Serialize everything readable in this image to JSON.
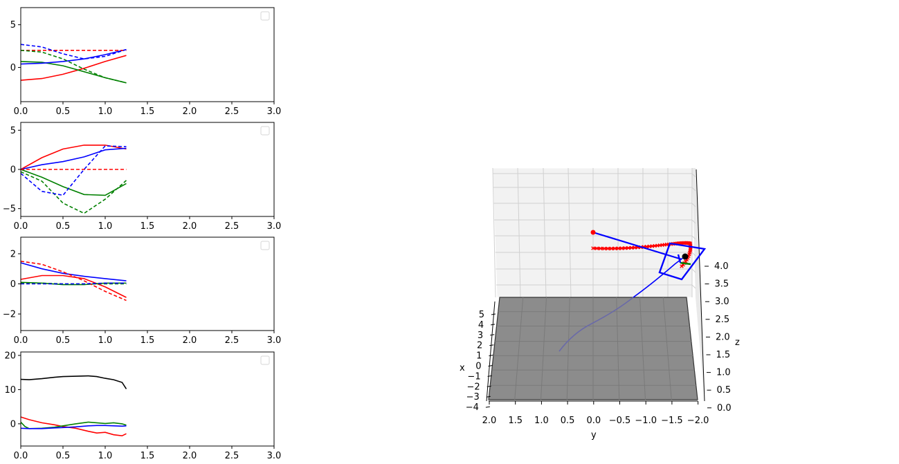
{
  "chart_data": [
    {
      "type": "line",
      "panel": "1",
      "xlim": [
        0,
        3.0
      ],
      "ylim": [
        -4,
        7
      ],
      "x_ticks": [
        "0.0",
        "0.5",
        "1.0",
        "1.5",
        "2.0",
        "2.5",
        "3.0"
      ],
      "y_ticks": [
        "5",
        "0"
      ],
      "y_tick_values": [
        5,
        0
      ],
      "legend": "top-right (empty)",
      "series": [
        {
          "color": "#ff0000",
          "style": "solid",
          "x": [
            0,
            0.25,
            0.5,
            0.75,
            1.0,
            1.25
          ],
          "y": [
            -1.5,
            -1.3,
            -0.8,
            -0.1,
            0.7,
            1.4
          ]
        },
        {
          "color": "#008000",
          "style": "solid",
          "x": [
            0,
            0.25,
            0.5,
            0.75,
            1.0,
            1.25
          ],
          "y": [
            0.7,
            0.6,
            0.2,
            -0.5,
            -1.2,
            -1.8
          ]
        },
        {
          "color": "#0000ff",
          "style": "solid",
          "x": [
            0,
            0.25,
            0.5,
            0.75,
            1.0,
            1.25
          ],
          "y": [
            0.4,
            0.5,
            0.7,
            1.0,
            1.5,
            2.1
          ]
        },
        {
          "color": "#ff0000",
          "style": "dashed",
          "x": [
            0,
            0.25,
            0.5,
            0.75,
            1.0,
            1.25
          ],
          "y": [
            2.0,
            2.0,
            2.0,
            2.0,
            2.0,
            2.0
          ]
        },
        {
          "color": "#008000",
          "style": "dashed",
          "x": [
            0,
            0.25,
            0.5,
            0.75,
            1.0,
            1.25
          ],
          "y": [
            2.0,
            1.8,
            1.0,
            -0.2,
            -1.2,
            -1.8
          ]
        },
        {
          "color": "#0000ff",
          "style": "dashed",
          "x": [
            0,
            0.25,
            0.5,
            0.75,
            1.0,
            1.25
          ],
          "y": [
            2.7,
            2.4,
            1.6,
            1.0,
            1.3,
            2.1
          ]
        }
      ]
    },
    {
      "type": "line",
      "panel": "2",
      "xlim": [
        0,
        3.0
      ],
      "ylim": [
        -6,
        6
      ],
      "x_ticks": [
        "0.0",
        "0.5",
        "1.0",
        "1.5",
        "2.0",
        "2.5",
        "3.0"
      ],
      "y_ticks": [
        "5",
        "0",
        "−5"
      ],
      "y_tick_values": [
        5,
        0,
        -5
      ],
      "legend": "top-right (empty)",
      "series": [
        {
          "color": "#ff0000",
          "style": "solid",
          "x": [
            0,
            0.25,
            0.5,
            0.75,
            1.0,
            1.25
          ],
          "y": [
            0.0,
            1.5,
            2.6,
            3.1,
            3.1,
            2.6
          ]
        },
        {
          "color": "#008000",
          "style": "solid",
          "x": [
            0,
            0.25,
            0.5,
            0.75,
            1.0,
            1.25
          ],
          "y": [
            0.0,
            -1.0,
            -2.2,
            -3.2,
            -3.3,
            -1.8
          ]
        },
        {
          "color": "#0000ff",
          "style": "solid",
          "x": [
            0,
            0.25,
            0.5,
            0.75,
            1.0,
            1.25
          ],
          "y": [
            0.0,
            0.6,
            1.0,
            1.6,
            2.5,
            2.7
          ]
        },
        {
          "color": "#ff0000",
          "style": "dashed",
          "x": [
            0,
            0.25,
            0.5,
            0.75,
            1.0,
            1.25
          ],
          "y": [
            0.0,
            0.0,
            0.0,
            0.0,
            0.0,
            0.0
          ]
        },
        {
          "color": "#008000",
          "style": "dashed",
          "x": [
            0,
            0.25,
            0.5,
            0.75,
            1.0,
            1.25
          ],
          "y": [
            -0.3,
            -1.5,
            -4.3,
            -5.6,
            -3.8,
            -1.4
          ]
        },
        {
          "color": "#0000ff",
          "style": "dashed",
          "x": [
            0,
            0.25,
            0.5,
            0.75,
            1.0,
            1.25
          ],
          "y": [
            -0.5,
            -2.8,
            -3.3,
            0.0,
            3.0,
            2.9
          ]
        }
      ]
    },
    {
      "type": "line",
      "panel": "3",
      "xlim": [
        0,
        3.0
      ],
      "ylim": [
        -3.1,
        3.1
      ],
      "x_ticks": [
        "0.0",
        "0.5",
        "1.0",
        "1.5",
        "2.0",
        "2.5",
        "3.0"
      ],
      "y_ticks": [
        "2",
        "0",
        "−2"
      ],
      "y_tick_values": [
        2,
        0,
        -2
      ],
      "legend": "top-right (empty)",
      "series": [
        {
          "color": "#ff0000",
          "style": "solid",
          "x": [
            0,
            0.25,
            0.5,
            0.75,
            1.0,
            1.25
          ],
          "y": [
            0.3,
            0.55,
            0.55,
            0.35,
            -0.2,
            -0.9
          ]
        },
        {
          "color": "#008000",
          "style": "solid",
          "x": [
            0,
            0.25,
            0.5,
            0.75,
            1.0,
            1.25
          ],
          "y": [
            0.1,
            0.05,
            -0.05,
            -0.05,
            0.05,
            0.05
          ]
        },
        {
          "color": "#0000ff",
          "style": "solid",
          "x": [
            0,
            0.25,
            0.5,
            0.75,
            1.0,
            1.25
          ],
          "y": [
            1.4,
            1.0,
            0.7,
            0.5,
            0.35,
            0.2
          ]
        },
        {
          "color": "#ff0000",
          "style": "dashed",
          "x": [
            0,
            0.25,
            0.5,
            0.75,
            1.0,
            1.25
          ],
          "y": [
            1.5,
            1.3,
            0.8,
            0.2,
            -0.5,
            -1.1
          ]
        },
        {
          "color": "#008000",
          "style": "dashed",
          "x": [
            0,
            0.25,
            0.5,
            0.75,
            1.0,
            1.25
          ],
          "y": [
            0.05,
            0.05,
            0.0,
            0.0,
            0.0,
            0.0
          ]
        },
        {
          "color": "#0000ff",
          "style": "dashed",
          "x": [
            0,
            0.25,
            0.5,
            0.75,
            1.0,
            1.25
          ],
          "y": [
            0.0,
            0.0,
            0.0,
            0.0,
            0.05,
            0.05
          ]
        }
      ]
    },
    {
      "type": "line",
      "panel": "4",
      "xlim": [
        0,
        3.0
      ],
      "ylim": [
        -6.5,
        21
      ],
      "x_ticks": [
        "0.0",
        "0.5",
        "1.0",
        "1.5",
        "2.0",
        "2.5",
        "3.0"
      ],
      "y_ticks": [
        "20",
        "10",
        "0"
      ],
      "y_tick_values": [
        20,
        10,
        0
      ],
      "legend": "top-right (empty)",
      "series": [
        {
          "color": "#000000",
          "style": "solid",
          "x": [
            0,
            0.1,
            0.25,
            0.4,
            0.5,
            0.65,
            0.8,
            0.9,
            1.0,
            1.1,
            1.2,
            1.25
          ],
          "y": [
            13.0,
            12.9,
            13.2,
            13.6,
            13.8,
            13.9,
            14.0,
            13.8,
            13.3,
            12.9,
            12.1,
            10.2
          ]
        },
        {
          "color": "#ff0000",
          "style": "solid",
          "x": [
            0,
            0.1,
            0.25,
            0.4,
            0.5,
            0.65,
            0.8,
            0.9,
            1.0,
            1.1,
            1.2,
            1.25
          ],
          "y": [
            2.0,
            1.2,
            0.3,
            -0.3,
            -0.8,
            -1.3,
            -2.2,
            -2.7,
            -2.5,
            -3.2,
            -3.5,
            -2.9
          ]
        },
        {
          "color": "#008000",
          "style": "solid",
          "x": [
            0,
            0.05,
            0.1,
            0.25,
            0.4,
            0.5,
            0.65,
            0.8,
            0.9,
            1.0,
            1.1,
            1.2,
            1.25
          ],
          "y": [
            0.5,
            -0.8,
            -1.4,
            -1.3,
            -1.0,
            -0.6,
            0.0,
            0.5,
            0.3,
            0.1,
            0.3,
            0.0,
            -0.4
          ]
        },
        {
          "color": "#0000ff",
          "style": "solid",
          "x": [
            0,
            0.1,
            0.25,
            0.4,
            0.5,
            0.65,
            0.8,
            0.9,
            1.0,
            1.1,
            1.2,
            1.25
          ],
          "y": [
            -1.3,
            -1.4,
            -1.4,
            -1.2,
            -1.1,
            -0.9,
            -0.6,
            -0.5,
            -0.5,
            -0.6,
            -0.7,
            -0.6
          ]
        }
      ]
    }
  ],
  "plot3d": {
    "x_label": "x",
    "y_label": "y",
    "z_label": "z",
    "x_ticks": [
      "5",
      "4",
      "3",
      "2",
      "1",
      "0",
      "−1",
      "−2",
      "−3",
      "−4"
    ],
    "y_ticks": [
      "2.0",
      "1.5",
      "1.0",
      "0.5",
      "0.0",
      "−0.5",
      "−1.0",
      "−1.5",
      "−2.0"
    ],
    "z_ticks": [
      "4.0",
      "3.5",
      "3.0",
      "2.5",
      "2.0",
      "1.5",
      "1.0",
      "0.5",
      "0.0"
    ],
    "colors": {
      "trajectory": "#0000ff",
      "markers": "#ff0000",
      "floor": "#8c8c8c",
      "pane": "#f2f2f2",
      "gate": "#0000ff",
      "drone": "#000000",
      "grid": "#d0d0d0"
    }
  }
}
